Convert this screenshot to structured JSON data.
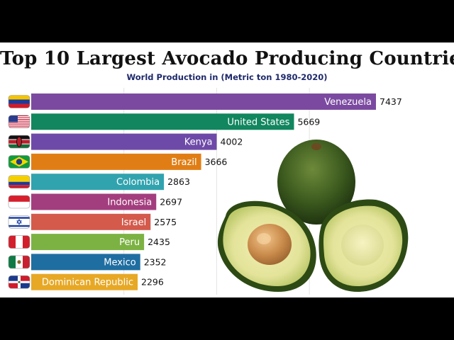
{
  "title": "Top 10 Largest Avocado Producing Countries",
  "subtitle": "World Production in (Metric ton 1980-2020)",
  "chart_data": {
    "type": "bar",
    "orientation": "horizontal",
    "title": "Top 10 Largest Avocado Producing Countries",
    "subtitle": "World Production in (Metric ton 1980-2020)",
    "xlabel": "",
    "ylabel": "",
    "grid": true,
    "xlim": [
      0,
      7437
    ],
    "categories": [
      "Venezuela",
      "United States",
      "Kenya",
      "Brazil",
      "Colombia",
      "Indonesia",
      "Israel",
      "Peru",
      "Mexico",
      "Dominican Republic"
    ],
    "values": [
      7437,
      5669,
      4002,
      3666,
      2863,
      2697,
      2575,
      2435,
      2352,
      2296
    ],
    "colors": [
      "#7b4aa0",
      "#11865f",
      "#6e4aa8",
      "#e07e15",
      "#31a3ae",
      "#a33e7e",
      "#d45a4c",
      "#7cb243",
      "#1f6ea1",
      "#e7a825"
    ],
    "flags": [
      "venezuela-flag-icon",
      "united-states-flag-icon",
      "kenya-flag-icon",
      "brazil-flag-icon",
      "colombia-flag-icon",
      "indonesia-flag-icon",
      "israel-flag-icon",
      "peru-flag-icon",
      "mexico-flag-icon",
      "dominican-republic-flag-icon"
    ]
  }
}
